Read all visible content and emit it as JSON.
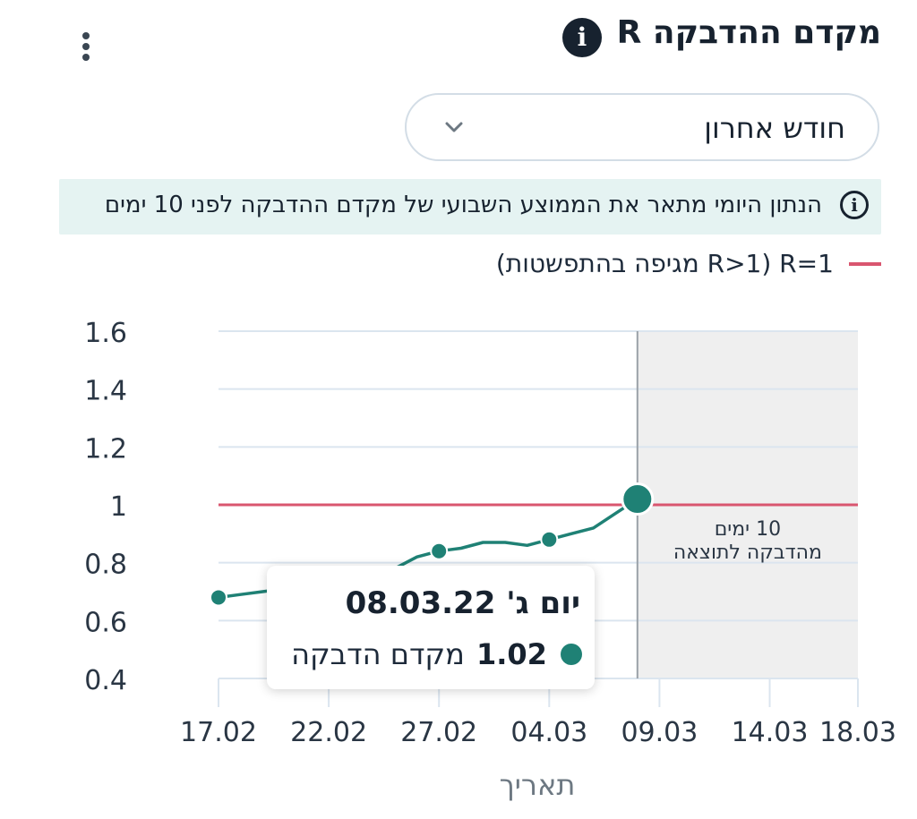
{
  "header": {
    "title": "מקדם ההדבקה R",
    "info_icon": "info-icon",
    "menu_icon": "kebab-menu-icon"
  },
  "range_select": {
    "value": "חודש אחרון",
    "icon": "chevron-down-icon"
  },
  "notice": {
    "text": "הנתון היומי מתאר את הממוצע השבועי של מקדם ההדבקה לפני 10 ימים",
    "icon": "info-outline-icon"
  },
  "legend": {
    "label": "R=1 (R>1 מגיפה בהתפשטות)",
    "color": "#d9566f"
  },
  "tooltip": {
    "date": "יום ג' 08.03.22",
    "value": "1.02",
    "label": "מקדם הדבקה",
    "color": "#1f8175"
  },
  "chart_data": {
    "type": "line",
    "xlabel": "תאריך",
    "ylabel": "",
    "ylim": [
      0.4,
      1.6
    ],
    "xlim": [
      "2022-02-17",
      "2022-03-18"
    ],
    "yticks": [
      "0.4",
      "0.6",
      "0.8",
      "1",
      "1.2",
      "1.4",
      "1.6"
    ],
    "xticks": [
      {
        "date": "2022-02-17",
        "label": "17.02"
      },
      {
        "date": "2022-02-22",
        "label": "22.02"
      },
      {
        "date": "2022-02-27",
        "label": "27.02"
      },
      {
        "date": "2022-03-04",
        "label": "04.03"
      },
      {
        "date": "2022-03-09",
        "label": "09.03"
      },
      {
        "date": "2022-03-14",
        "label": "14.03"
      },
      {
        "date": "2022-03-18",
        "label": "18.03"
      }
    ],
    "reference_line": {
      "y": 1,
      "color": "#d9566f"
    },
    "shaded_region": {
      "from": "2022-03-08",
      "to": "2022-03-18",
      "label_lines": [
        "10 ימים",
        "מהדבקה לתוצאה"
      ]
    },
    "grid": true,
    "series": [
      {
        "color": "#1f8175",
        "x": [
          "2022-02-17",
          "2022-02-18",
          "2022-02-19",
          "2022-02-20",
          "2022-02-21",
          "2022-02-22",
          "2022-02-23",
          "2022-02-24",
          "2022-02-25",
          "2022-02-26",
          "2022-02-27",
          "2022-02-28",
          "2022-03-01",
          "2022-03-02",
          "2022-03-03",
          "2022-03-04",
          "2022-03-05",
          "2022-03-06",
          "2022-03-07",
          "2022-03-08"
        ],
        "y": [
          0.68,
          0.69,
          0.7,
          0.71,
          0.72,
          0.73,
          0.74,
          0.76,
          0.78,
          0.82,
          0.84,
          0.85,
          0.87,
          0.87,
          0.86,
          0.88,
          0.9,
          0.92,
          0.97,
          1.02
        ],
        "markers": [
          "2022-02-17",
          "2022-02-27",
          "2022-03-04",
          "2022-03-08"
        ],
        "highlight": "2022-03-08"
      }
    ]
  }
}
